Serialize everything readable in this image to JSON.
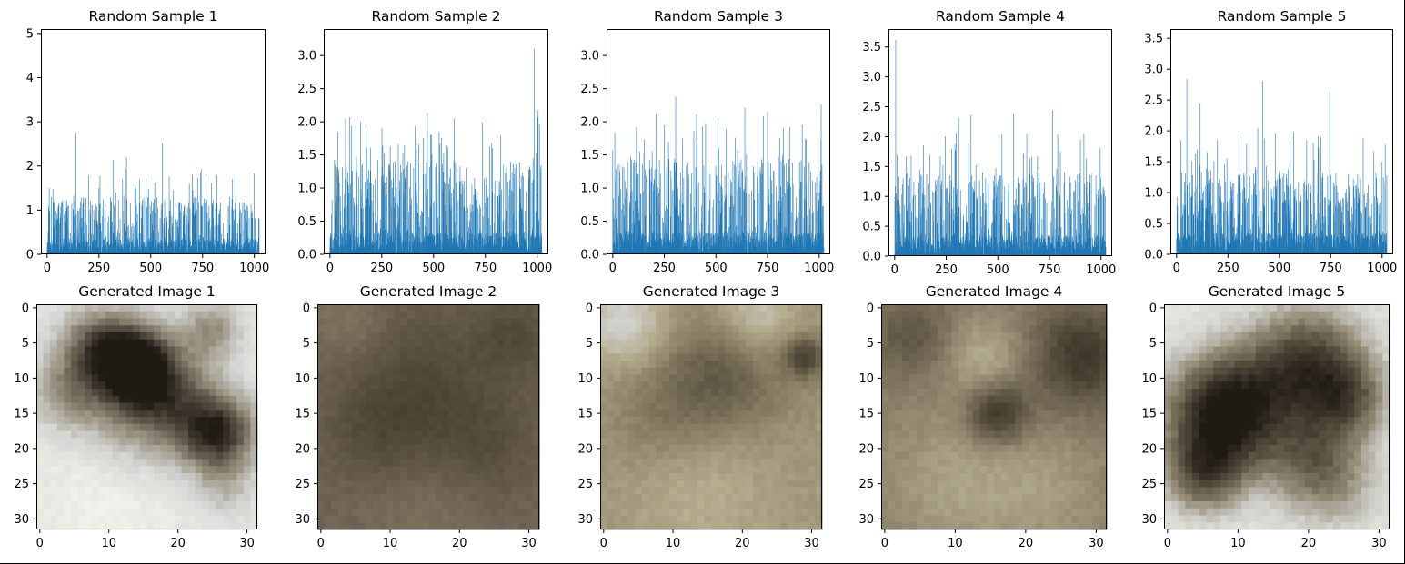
{
  "chart_data": [
    {
      "type": "bar",
      "title": "Random Sample 1",
      "n": 1024,
      "xlim": [
        -30,
        1054
      ],
      "ylim": [
        0,
        5.1
      ],
      "xticks": [
        0,
        250,
        500,
        750,
        1000
      ],
      "xtick_labels": [
        "0",
        "250",
        "500",
        "750",
        "1000"
      ],
      "yticks": [
        0,
        1,
        2,
        3,
        4,
        5
      ],
      "ytick_labels": [
        "0",
        "1",
        "2",
        "3",
        "4",
        "5"
      ],
      "peaks": [
        [
          138,
          2.76
        ],
        [
          555,
          2.51
        ],
        [
          383,
          2.2
        ],
        [
          320,
          2.14
        ],
        [
          1000,
          1.83
        ],
        [
          700,
          1.8
        ],
        [
          820,
          1.78
        ],
        [
          200,
          1.78
        ],
        [
          250,
          1.5
        ],
        [
          10,
          1.5
        ]
      ],
      "base_max": 1.3,
      "seed": 11
    },
    {
      "type": "bar",
      "title": "Random Sample 2",
      "n": 1024,
      "xlim": [
        -30,
        1054
      ],
      "ylim": [
        0,
        3.4
      ],
      "xticks": [
        0,
        250,
        500,
        750,
        1000
      ],
      "xtick_labels": [
        "0",
        "250",
        "500",
        "750",
        "1000"
      ],
      "yticks": [
        0,
        0.5,
        1,
        1.5,
        2,
        2.5,
        3
      ],
      "ytick_labels": [
        "0.0",
        "0.5",
        "1.0",
        "1.5",
        "2.0",
        "2.5",
        "3.0"
      ],
      "peaks": [
        [
          985,
          3.1
        ],
        [
          1005,
          2.17
        ],
        [
          470,
          2.14
        ],
        [
          600,
          2.05
        ],
        [
          735,
          1.99
        ],
        [
          450,
          1.76
        ],
        [
          330,
          1.66
        ],
        [
          360,
          1.65
        ],
        [
          770,
          1.63
        ],
        [
          195,
          1.61
        ],
        [
          980,
          1.45
        ]
      ],
      "base_max": 1.4,
      "seed": 23
    },
    {
      "type": "bar",
      "title": "Random Sample 3",
      "n": 1024,
      "xlim": [
        -30,
        1054
      ],
      "ylim": [
        0,
        3.4
      ],
      "xticks": [
        0,
        250,
        500,
        750,
        1000
      ],
      "xtick_labels": [
        "0",
        "250",
        "500",
        "750",
        "1000"
      ],
      "yticks": [
        0,
        0.5,
        1,
        1.5,
        2,
        2.5,
        3
      ],
      "ytick_labels": [
        "0.0",
        "0.5",
        "1.0",
        "1.5",
        "2.0",
        "2.5",
        "3.0"
      ],
      "peaks": [
        [
          305,
          2.38
        ],
        [
          1010,
          2.26
        ],
        [
          640,
          2.21
        ],
        [
          750,
          2.15
        ],
        [
          510,
          2.07
        ],
        [
          450,
          1.98
        ],
        [
          250,
          1.95
        ],
        [
          810,
          1.75
        ],
        [
          0,
          1.57
        ],
        [
          130,
          1.55
        ]
      ],
      "base_max": 1.45,
      "seed": 37
    },
    {
      "type": "bar",
      "title": "Random Sample 4",
      "n": 1024,
      "xlim": [
        -30,
        1054
      ],
      "ylim": [
        0,
        3.8
      ],
      "xticks": [
        0,
        250,
        500,
        750,
        1000
      ],
      "xtick_labels": [
        "0",
        "250",
        "500",
        "750",
        "1000"
      ],
      "yticks": [
        0,
        0.5,
        1,
        1.5,
        2,
        2.5,
        3,
        3.5
      ],
      "ytick_labels": [
        "0.0",
        "0.5",
        "1.0",
        "1.5",
        "2.0",
        "2.5",
        "3.0",
        "3.5"
      ],
      "peaks": [
        [
          5,
          3.62
        ],
        [
          765,
          2.44
        ],
        [
          575,
          2.38
        ],
        [
          370,
          2.36
        ],
        [
          310,
          2.31
        ],
        [
          640,
          2.05
        ],
        [
          900,
          1.95
        ],
        [
          140,
          1.85
        ],
        [
          80,
          1.68
        ],
        [
          1000,
          1.3
        ]
      ],
      "base_max": 1.4,
      "seed": 53
    },
    {
      "type": "bar",
      "title": "Random Sample 5",
      "n": 1024,
      "xlim": [
        -30,
        1054
      ],
      "ylim": [
        0,
        3.65
      ],
      "xticks": [
        0,
        250,
        500,
        750,
        1000
      ],
      "xtick_labels": [
        "0",
        "250",
        "500",
        "750",
        "1000"
      ],
      "yticks": [
        0,
        0.5,
        1,
        1.5,
        2,
        2.5,
        3,
        3.5
      ],
      "ytick_labels": [
        "0.0",
        "0.5",
        "1.0",
        "1.5",
        "2.0",
        "2.5",
        "3.0",
        "3.5"
      ],
      "peaks": [
        [
          50,
          2.84
        ],
        [
          420,
          2.81
        ],
        [
          745,
          2.63
        ],
        [
          115,
          2.45
        ],
        [
          395,
          2.05
        ],
        [
          570,
          1.98
        ],
        [
          480,
          1.96
        ],
        [
          665,
          1.8
        ],
        [
          100,
          1.7
        ],
        [
          1000,
          1.5
        ]
      ],
      "base_max": 1.35,
      "seed": 71
    },
    {
      "type": "heatmap",
      "title": "Generated Image 1",
      "size": 32,
      "xticks": [
        0,
        10,
        20,
        30
      ],
      "xtick_labels": [
        "0",
        "10",
        "20",
        "30"
      ],
      "yticks": [
        0,
        5,
        10,
        15,
        20,
        25,
        30
      ],
      "ytick_labels": [
        "0",
        "5",
        "10",
        "15",
        "20",
        "25",
        "30"
      ],
      "palette": [
        "#1e1a14",
        "#5f5548",
        "#9c9585",
        "#d3d5d2",
        "#f4f2ec"
      ],
      "background": 0.9,
      "blobs": [
        [
          14,
          8,
          4,
          -0.9
        ],
        [
          8,
          5,
          4,
          -0.5
        ],
        [
          25,
          3,
          3,
          -0.4
        ],
        [
          26,
          18,
          4,
          -0.75
        ],
        [
          14,
          15,
          6,
          -0.35
        ],
        [
          20,
          13,
          5,
          -0.35
        ],
        [
          4,
          12,
          4,
          -0.35
        ],
        [
          10,
          26,
          6,
          0.1
        ],
        [
          27,
          26,
          3,
          -0.2
        ]
      ],
      "seed": 101
    },
    {
      "type": "heatmap",
      "title": "Generated Image 2",
      "size": 32,
      "xticks": [
        0,
        10,
        20,
        30
      ],
      "xtick_labels": [
        "0",
        "10",
        "20",
        "30"
      ],
      "yticks": [
        0,
        5,
        10,
        15,
        20,
        25,
        30
      ],
      "ytick_labels": [
        "0",
        "5",
        "10",
        "15",
        "20",
        "25",
        "30"
      ],
      "palette": [
        "#2e271f",
        "#4c4334",
        "#695e4d",
        "#8a8069",
        "#aea58d"
      ],
      "background": 0.55,
      "blobs": [
        [
          15,
          12,
          8,
          -0.25
        ],
        [
          8,
          18,
          5,
          -0.15
        ],
        [
          24,
          20,
          5,
          -0.15
        ],
        [
          28,
          4,
          4,
          -0.2
        ],
        [
          4,
          2,
          4,
          0.15
        ],
        [
          15,
          28,
          6,
          0.1
        ]
      ],
      "seed": 202
    },
    {
      "type": "heatmap",
      "title": "Generated Image 3",
      "size": 32,
      "xticks": [
        0,
        10,
        20,
        30
      ],
      "xtick_labels": [
        "0",
        "10",
        "20",
        "30"
      ],
      "yticks": [
        0,
        5,
        10,
        15,
        20,
        25,
        30
      ],
      "ytick_labels": [
        "0",
        "5",
        "10",
        "15",
        "20",
        "25",
        "30"
      ],
      "palette": [
        "#3a3427",
        "#5e5643",
        "#8a7f64",
        "#b3aa8c",
        "#d2d3cf"
      ],
      "background": 0.62,
      "blobs": [
        [
          17,
          10,
          6,
          -0.35
        ],
        [
          29,
          7,
          2,
          -0.5
        ],
        [
          3,
          2,
          4,
          0.4
        ],
        [
          22,
          1,
          4,
          0.3
        ],
        [
          14,
          26,
          8,
          0.15
        ],
        [
          8,
          16,
          5,
          -0.15
        ]
      ],
      "seed": 303
    },
    {
      "type": "heatmap",
      "title": "Generated Image 4",
      "size": 32,
      "xticks": [
        0,
        10,
        20,
        30
      ],
      "xtick_labels": [
        "0",
        "10",
        "20",
        "30"
      ],
      "yticks": [
        0,
        5,
        10,
        15,
        20,
        25,
        30
      ],
      "ytick_labels": [
        "0",
        "5",
        "10",
        "15",
        "20",
        "25",
        "30"
      ],
      "palette": [
        "#2f2a20",
        "#514838",
        "#7a705b",
        "#a59c80",
        "#c9c4b0"
      ],
      "background": 0.58,
      "blobs": [
        [
          16,
          15,
          3,
          -0.5
        ],
        [
          28,
          7,
          5,
          -0.45
        ],
        [
          14,
          7,
          4,
          0.25
        ],
        [
          4,
          4,
          4,
          -0.25
        ],
        [
          10,
          25,
          7,
          0.2
        ],
        [
          23,
          26,
          6,
          0.15
        ]
      ],
      "seed": 404
    },
    {
      "type": "heatmap",
      "title": "Generated Image 5",
      "size": 32,
      "xticks": [
        0,
        10,
        20,
        30
      ],
      "xtick_labels": [
        "0",
        "10",
        "20",
        "30"
      ],
      "yticks": [
        0,
        5,
        10,
        15,
        20,
        25,
        30
      ],
      "ytick_labels": [
        "0",
        "5",
        "10",
        "15",
        "20",
        "25",
        "30"
      ],
      "palette": [
        "#1e1a14",
        "#51483a",
        "#8d8570",
        "#cfcfc9",
        "#f3f3f0"
      ],
      "background": 0.92,
      "blobs": [
        [
          8,
          15,
          6,
          -0.95
        ],
        [
          20,
          8,
          6,
          -0.7
        ],
        [
          26,
          13,
          4,
          -0.4
        ],
        [
          5,
          24,
          4,
          -0.5
        ],
        [
          21,
          22,
          5,
          -0.45
        ],
        [
          12,
          27,
          4,
          0.0
        ],
        [
          25,
          27,
          5,
          -0.15
        ]
      ],
      "seed": 505
    }
  ]
}
